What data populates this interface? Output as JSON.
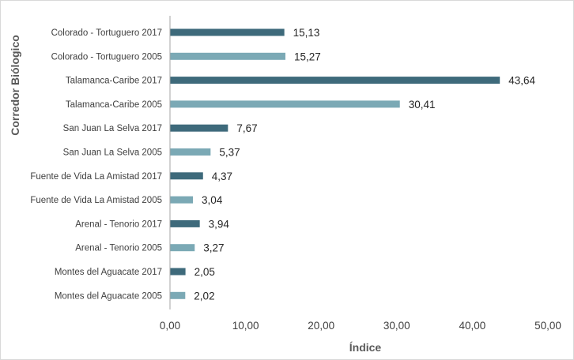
{
  "chart_data": {
    "type": "bar",
    "orientation": "horizontal",
    "categories": [
      "Colorado - Tortuguero  2017",
      "Colorado - Tortuguero  2005",
      "Talamanca-Caribe 2017",
      "Talamanca-Caribe 2005",
      "San Juan La Selva 2017",
      "San Juan La Selva 2005",
      "Fuente de Vida La Amistad 2017",
      "Fuente de Vida La Amistad  2005",
      "Arenal - Tenorio 2017",
      "Arenal - Tenorio 2005",
      "Montes del Aguacate 2017",
      "Montes del Aguacate 2005"
    ],
    "values": [
      15.13,
      15.27,
      43.64,
      30.41,
      7.67,
      5.37,
      4.37,
      3.04,
      3.94,
      3.27,
      2.05,
      2.02
    ],
    "value_labels": [
      "15,13",
      "15,27",
      "43,64",
      "30,41",
      "7,67",
      "5,37",
      "4,37",
      "3,04",
      "3,94",
      "3,27",
      "2,05",
      "2,02"
    ],
    "bar_colors": [
      "#3e6a7b",
      "#7ba9b5",
      "#3e6a7b",
      "#7ba9b5",
      "#3e6a7b",
      "#7ba9b5",
      "#3e6a7b",
      "#7ba9b5",
      "#3e6a7b",
      "#7ba9b5",
      "#3e6a7b",
      "#7ba9b5"
    ],
    "xlim": [
      0,
      50
    ],
    "xticks": [
      0,
      10,
      20,
      30,
      40,
      50
    ],
    "xtick_labels": [
      "0,00",
      "10,00",
      "20,00",
      "30,00",
      "40,00",
      "50,00"
    ],
    "xlabel": "Índice",
    "ylabel": "Corredor Biólogico",
    "title": "",
    "grid": false,
    "legend": "none"
  }
}
